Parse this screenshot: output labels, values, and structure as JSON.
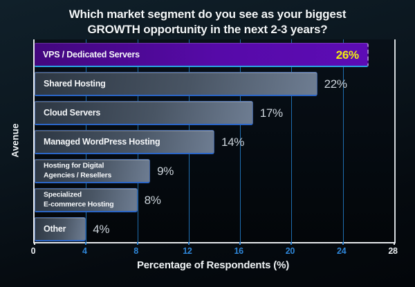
{
  "title": "Which market segment do you see as your biggest\nGROWTH opportunity in the next 2-3 years?",
  "chart_data": {
    "type": "bar",
    "orientation": "horizontal",
    "title": "Which market segment do you see as your biggest GROWTH opportunity in the next 2-3 years?",
    "xlabel": "Percentage of Respondents (%)",
    "ylabel": "Avenue",
    "xlim": [
      0,
      28
    ],
    "xticks": [
      0,
      4,
      8,
      12,
      16,
      20,
      24,
      28
    ],
    "grid": true,
    "legend": false,
    "rows": [
      {
        "label": "VPS / Dedicated Servers",
        "value": 26,
        "value_label": "26%",
        "highlight": true
      },
      {
        "label": "Shared Hosting",
        "value": 22,
        "value_label": "22%",
        "highlight": false
      },
      {
        "label": "Cloud Servers",
        "value": 17,
        "value_label": "17%",
        "highlight": false
      },
      {
        "label": "Managed WordPress Hosting",
        "value": 14,
        "value_label": "14%",
        "highlight": false
      },
      {
        "label": "Hosting for Digital\nAgencies / Resellers",
        "value": 9,
        "value_label": "9%",
        "highlight": false
      },
      {
        "label": "Specialized\nE-commerce Hosting",
        "value": 8,
        "value_label": "8%",
        "highlight": false
      },
      {
        "label": "Other",
        "value": 4,
        "value_label": "4%",
        "highlight": false
      }
    ]
  },
  "colors": {
    "background_top": "#10202a",
    "background_bottom": "#03060a",
    "plot_background": "#060c12",
    "highlight_bar": "#560aa8",
    "highlight_value": "#f2ee0e",
    "bar_gradient_start": "#2d3743",
    "bar_gradient_end": "#6e7d92",
    "bar_border_blue": "#2b66c8",
    "gridline_blue": "#1f6fb2",
    "tick_blue": "#2e86d8",
    "axis_white": "#e6e9ec"
  }
}
